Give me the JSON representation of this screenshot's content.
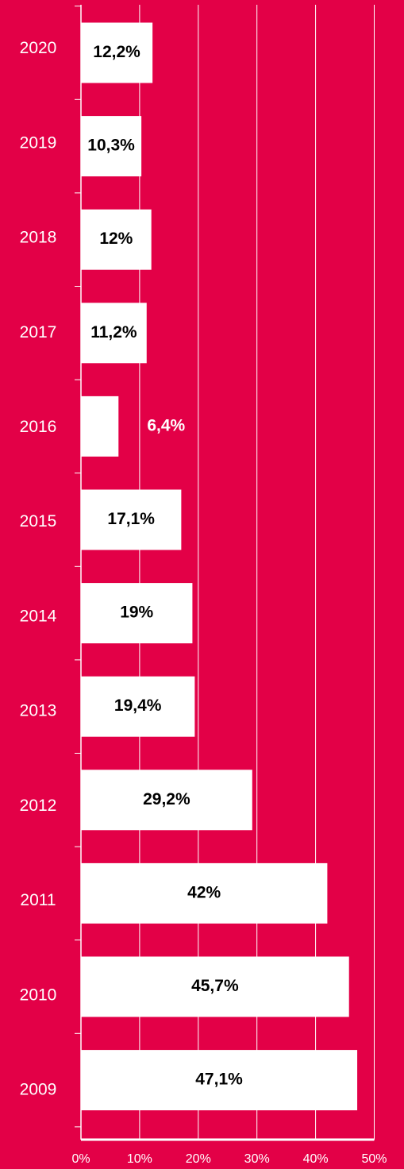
{
  "colors": {
    "background": "#e30047",
    "bar": "#ffffff",
    "grid": "#ffffff",
    "label_inside": "#000000",
    "label_outside": "#ffffff"
  },
  "chart_data": {
    "type": "bar",
    "orientation": "horizontal",
    "categories": [
      "2020",
      "2019",
      "2018",
      "2017",
      "2016",
      "2015",
      "2014",
      "2013",
      "2012",
      "2011",
      "2010",
      "2009"
    ],
    "values": [
      12.2,
      10.3,
      12,
      11.2,
      6.4,
      17.1,
      19,
      19.4,
      29.2,
      42,
      45.7,
      47.1
    ],
    "value_labels": [
      "12,2%",
      "10,3%",
      "12%",
      "11,2%",
      "6,4%",
      "17,1%",
      "19%",
      "19,4%",
      "29,2%",
      "42%",
      "45,7%",
      "47,1%"
    ],
    "xlim": [
      0,
      50
    ],
    "x_ticks": [
      0,
      10,
      20,
      30,
      40,
      50
    ],
    "x_tick_labels": [
      "0%",
      "10%",
      "20%",
      "30%",
      "40%",
      "50%"
    ],
    "grid": true,
    "legend": "none"
  }
}
